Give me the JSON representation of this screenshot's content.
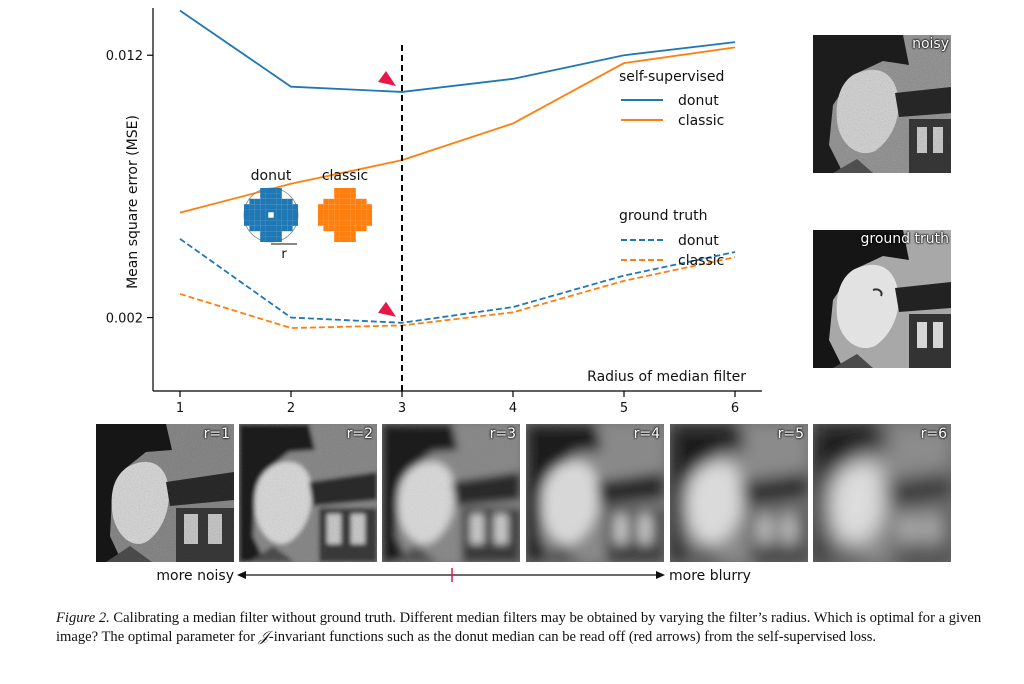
{
  "chart_data": {
    "type": "line",
    "xlabel": "Radius of median filter",
    "ylabel": "Mean square error (MSE)",
    "x": [
      1,
      2,
      3,
      4,
      5,
      6
    ],
    "x_ticks": [
      "1",
      "2",
      "3",
      "4",
      "5",
      "6"
    ],
    "y_ticks": [
      {
        "value": 0.012,
        "label": "0.012"
      },
      {
        "value": 0.002,
        "label": "0.002"
      }
    ],
    "ylim": [
      -0.0008,
      0.0138
    ],
    "grid": false,
    "optimal_x": 3,
    "legend_groups": [
      {
        "title": "self-supervised",
        "entries": [
          "donut",
          "classic"
        ]
      },
      {
        "title": "ground truth",
        "entries": [
          "donut",
          "classic"
        ]
      }
    ],
    "series": [
      {
        "group": "self-supervised",
        "label": "donut",
        "style": "solid",
        "color": "#1f77b4",
        "values": [
          0.0137,
          0.0108,
          0.0106,
          0.0111,
          0.012,
          0.0125
        ]
      },
      {
        "group": "self-supervised",
        "label": "classic",
        "style": "solid",
        "color": "#ff7f0e",
        "values": [
          0.006,
          0.0071,
          0.008,
          0.0094,
          0.0117,
          0.0123
        ]
      },
      {
        "group": "ground truth",
        "label": "donut",
        "style": "dashed",
        "color": "#1f77b4",
        "values": [
          0.005,
          0.002,
          0.0018,
          0.0024,
          0.0036,
          0.0045
        ]
      },
      {
        "group": "ground truth",
        "label": "classic",
        "style": "dashed",
        "color": "#ff7f0e",
        "values": [
          0.0029,
          0.0016,
          0.0017,
          0.0022,
          0.0034,
          0.0043
        ]
      }
    ],
    "arrow_color": "#e8174a",
    "inset": {
      "labels": [
        "donut",
        "classic"
      ],
      "radius_label": "r",
      "donut_color": "#1f77b4",
      "classic_color": "#ff7f0e"
    }
  },
  "side_images": {
    "noisy": "noisy",
    "ground_truth": "ground truth"
  },
  "filtered_images": [
    "r=1",
    "r=2",
    "r=3",
    "r=4",
    "r=5",
    "r=6"
  ],
  "axis_arrow": {
    "left": "more noisy",
    "right": "more blurry",
    "tick_color": "#e8174a"
  },
  "caption": {
    "label": "Figure 2.",
    "text_before": " Calibrating a median filter without ground truth. Different median filters may be obtained by varying the filter’s radius. Which is optimal for a given image? The optimal parameter for ",
    "symbol": "𝒥",
    "text_after": "-invariant functions such as the donut median can be read off (red arrows) from the self-supervised loss."
  }
}
